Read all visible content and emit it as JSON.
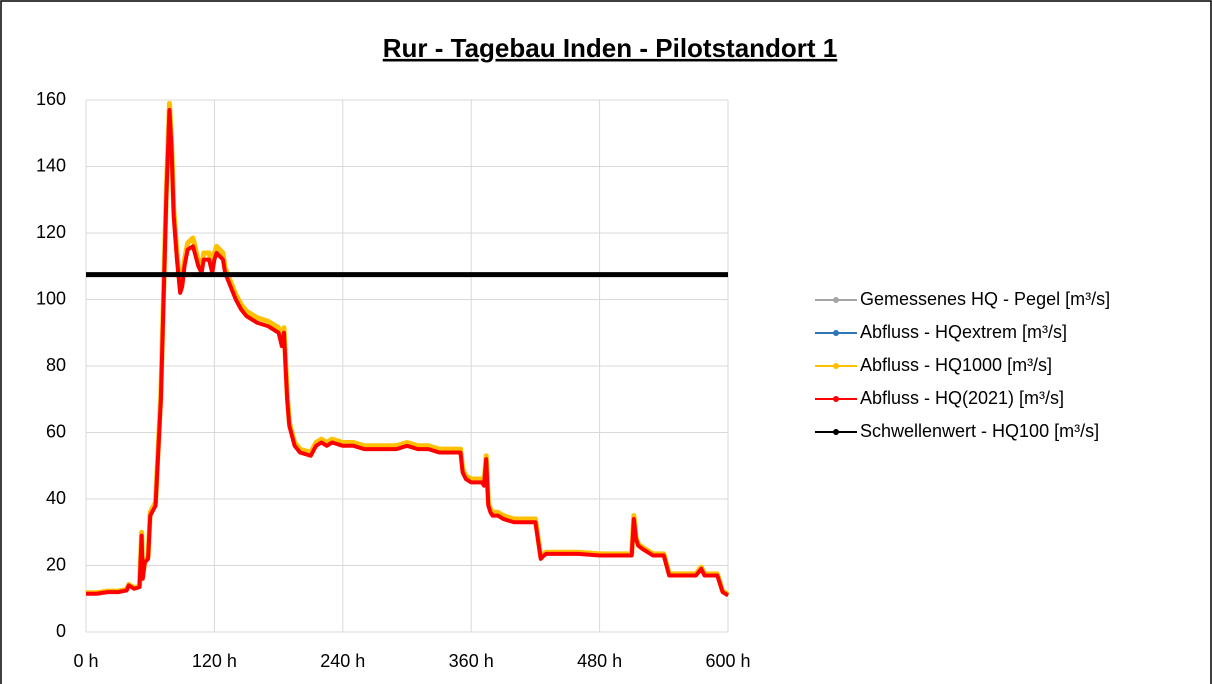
{
  "chart_data": {
    "type": "line",
    "title": "Rur - Tagebau Inden - Pilotstandort 1",
    "xlim": [
      0,
      600
    ],
    "ylim": [
      0,
      160
    ],
    "xticks": [
      {
        "value": 0,
        "label": "0 h"
      },
      {
        "value": 120,
        "label": "120 h"
      },
      {
        "value": 240,
        "label": "240 h"
      },
      {
        "value": 360,
        "label": "360 h"
      },
      {
        "value": 480,
        "label": "480 h"
      },
      {
        "value": 600,
        "label": "600 h"
      }
    ],
    "yticks": [
      0,
      20,
      40,
      60,
      80,
      100,
      120,
      140,
      160
    ],
    "grid": true,
    "series": [
      {
        "name": "Gemessenes HQ - Pegel [m³/s]",
        "color": "#a5a5a5",
        "x": [
          0,
          10,
          20,
          30,
          38,
          40,
          45,
          50,
          52,
          53,
          55,
          58,
          60,
          65,
          70,
          75,
          78,
          80,
          82,
          85,
          88,
          90,
          92,
          95,
          100,
          105,
          108,
          110,
          115,
          118,
          120,
          122,
          125,
          128,
          130,
          135,
          140,
          145,
          150,
          160,
          170,
          180,
          183,
          185,
          188,
          190,
          195,
          200,
          210,
          215,
          220,
          225,
          230,
          240,
          250,
          260,
          270,
          280,
          290,
          300,
          310,
          320,
          330,
          340,
          350,
          352,
          355,
          360,
          370,
          372,
          374,
          376,
          378,
          380,
          385,
          390,
          400,
          410,
          420,
          425,
          428,
          430,
          440,
          460,
          480,
          500,
          510,
          512,
          514,
          516,
          520,
          530,
          540,
          545,
          550,
          560,
          570,
          575,
          578,
          580,
          590,
          595,
          600
        ],
        "values": [
          11.5,
          11.5,
          12,
          12,
          12.5,
          14,
          13,
          13.5,
          29,
          16,
          21,
          22,
          35,
          38,
          70,
          130,
          157,
          145,
          125,
          112,
          102,
          104,
          110,
          115,
          116,
          110,
          108,
          112,
          112,
          108,
          112,
          114,
          113,
          112,
          108,
          104,
          100,
          97,
          95,
          93,
          92,
          90,
          86,
          90,
          70,
          62,
          56,
          54,
          53,
          56,
          57,
          56,
          57,
          56,
          56,
          55,
          55,
          55,
          55,
          56,
          55,
          55,
          54,
          54,
          54,
          48,
          46,
          45,
          45,
          44,
          52,
          38,
          36,
          35,
          35,
          34,
          33,
          33,
          33,
          22,
          23,
          23.5,
          23.5,
          23.5,
          23,
          23,
          23,
          34,
          28,
          26,
          25,
          23,
          23,
          17,
          17,
          17,
          17,
          19,
          17,
          17,
          17,
          12,
          11
        ]
      },
      {
        "name": "Abfluss - HQextrem [m³/s]",
        "color": "#2e75b6",
        "x": [
          0,
          10,
          20,
          30,
          38,
          40,
          45,
          50,
          52,
          53,
          55,
          58,
          60,
          65,
          70,
          75,
          78,
          80,
          82,
          85,
          88,
          90,
          92,
          95,
          100,
          105,
          108,
          110,
          115,
          118,
          120,
          122,
          125,
          128,
          130,
          135,
          140,
          145,
          150,
          160,
          170,
          180,
          183,
          185,
          188,
          190,
          195,
          200,
          210,
          215,
          220,
          225,
          230,
          240,
          250,
          260,
          270,
          280,
          290,
          300,
          310,
          320,
          330,
          340,
          350,
          352,
          355,
          360,
          370,
          372,
          374,
          376,
          378,
          380,
          385,
          390,
          400,
          410,
          420,
          425,
          428,
          430,
          440,
          460,
          480,
          500,
          510,
          512,
          514,
          516,
          520,
          530,
          540,
          545,
          550,
          560,
          570,
          575,
          578,
          580,
          590,
          595,
          600
        ],
        "values": [
          11.5,
          11.5,
          12,
          12,
          12.5,
          14,
          13,
          13.5,
          29,
          16,
          21,
          22,
          35,
          38,
          70,
          130,
          157,
          145,
          125,
          112,
          102,
          104,
          110,
          115,
          116,
          110,
          108,
          112,
          112,
          108,
          112,
          114,
          113,
          112,
          108,
          104,
          100,
          97,
          95,
          93,
          92,
          90,
          86,
          90,
          70,
          62,
          56,
          54,
          53,
          56,
          57,
          56,
          57,
          56,
          56,
          55,
          55,
          55,
          55,
          56,
          55,
          55,
          54,
          54,
          54,
          48,
          46,
          45,
          45,
          44,
          52,
          38,
          36,
          35,
          35,
          34,
          33,
          33,
          33,
          22,
          23,
          23.5,
          23.5,
          23.5,
          23,
          23,
          23,
          34,
          28,
          26,
          25,
          23,
          23,
          17,
          17,
          17,
          17,
          19,
          17,
          17,
          17,
          12,
          11
        ]
      },
      {
        "name": "Abfluss - HQ1000 [m³/s]",
        "color": "#ffc000",
        "x": [
          0,
          10,
          20,
          30,
          38,
          40,
          45,
          50,
          52,
          53,
          55,
          58,
          60,
          65,
          70,
          75,
          78,
          80,
          82,
          85,
          88,
          90,
          92,
          95,
          100,
          105,
          108,
          110,
          115,
          118,
          120,
          122,
          125,
          128,
          130,
          135,
          140,
          145,
          150,
          160,
          170,
          180,
          183,
          185,
          188,
          190,
          195,
          200,
          210,
          215,
          220,
          225,
          230,
          240,
          250,
          260,
          270,
          280,
          290,
          300,
          310,
          320,
          330,
          340,
          350,
          352,
          355,
          360,
          370,
          372,
          374,
          376,
          378,
          380,
          385,
          390,
          400,
          410,
          420,
          425,
          428,
          430,
          440,
          460,
          480,
          500,
          510,
          512,
          514,
          516,
          520,
          530,
          540,
          545,
          550,
          560,
          570,
          575,
          578,
          580,
          590,
          595,
          600
        ],
        "values": [
          11.8,
          11.8,
          12.3,
          12.3,
          12.8,
          14.3,
          13.3,
          13.8,
          30,
          16.5,
          21.5,
          22.5,
          36,
          39,
          72,
          132,
          159,
          147,
          127,
          114,
          103.5,
          105.5,
          112,
          117,
          118.5,
          111.5,
          109.5,
          114,
          114,
          109.5,
          114,
          116,
          115,
          114,
          109.5,
          105.5,
          101.5,
          98.5,
          96.5,
          94.5,
          93.5,
          91.5,
          87.5,
          91.5,
          71.5,
          63,
          57,
          55,
          54,
          57,
          58,
          57,
          58,
          57,
          57,
          56,
          56,
          56,
          56,
          57,
          56,
          56,
          55,
          55,
          55,
          49,
          47,
          46,
          46,
          45,
          53,
          39,
          37,
          36,
          36,
          35,
          34,
          34,
          34,
          22.5,
          23.5,
          24,
          24,
          24,
          23.5,
          23.5,
          23.5,
          35,
          28.5,
          26.5,
          25.5,
          23.5,
          23.5,
          17.5,
          17.5,
          17.5,
          17.5,
          19.5,
          17.5,
          17.5,
          17.5,
          12.3,
          11.3
        ]
      },
      {
        "name": "Abfluss - HQ(2021) [m³/s]",
        "color": "#ff0000",
        "x": [
          0,
          10,
          20,
          30,
          38,
          40,
          45,
          50,
          52,
          53,
          55,
          58,
          60,
          65,
          70,
          75,
          78,
          80,
          82,
          85,
          88,
          90,
          92,
          95,
          100,
          105,
          108,
          110,
          115,
          118,
          120,
          122,
          125,
          128,
          130,
          135,
          140,
          145,
          150,
          160,
          170,
          180,
          183,
          185,
          188,
          190,
          195,
          200,
          210,
          215,
          220,
          225,
          230,
          240,
          250,
          260,
          270,
          280,
          290,
          300,
          310,
          320,
          330,
          340,
          350,
          352,
          355,
          360,
          370,
          372,
          374,
          376,
          378,
          380,
          385,
          390,
          400,
          410,
          420,
          425,
          428,
          430,
          440,
          460,
          480,
          500,
          510,
          512,
          514,
          516,
          520,
          530,
          540,
          545,
          550,
          560,
          570,
          575,
          578,
          580,
          590,
          595,
          600
        ],
        "values": [
          11.5,
          11.5,
          12,
          12,
          12.5,
          14,
          13,
          13.5,
          29,
          16,
          21,
          22,
          35,
          38,
          70,
          130,
          157,
          145,
          125,
          112,
          102,
          104,
          110,
          115,
          116,
          110,
          108,
          112,
          112,
          108,
          112,
          114,
          113,
          112,
          108,
          104,
          100,
          97,
          95,
          93,
          92,
          90,
          86,
          90,
          70,
          62,
          56,
          54,
          53,
          56,
          57,
          56,
          57,
          56,
          56,
          55,
          55,
          55,
          55,
          56,
          55,
          55,
          54,
          54,
          54,
          48,
          46,
          45,
          45,
          44,
          52,
          38,
          36,
          35,
          35,
          34,
          33,
          33,
          33,
          22,
          23,
          23.5,
          23.5,
          23.5,
          23,
          23,
          23,
          34,
          28,
          26,
          25,
          23,
          23,
          17,
          17,
          17,
          17,
          19,
          17,
          17,
          17,
          12,
          11
        ]
      },
      {
        "name": "Schwellenwert - HQ100 [m³/s]",
        "color": "#000000",
        "x": [
          0,
          600
        ],
        "values": [
          107.5,
          107.5
        ]
      }
    ]
  }
}
